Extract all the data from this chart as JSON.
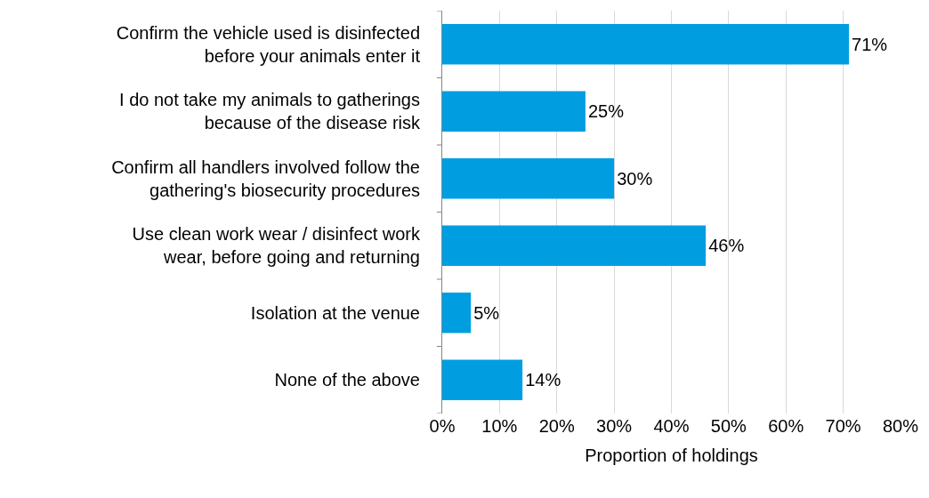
{
  "chart_data": {
    "type": "bar",
    "orientation": "horizontal",
    "xlabel": "Proportion of holdings",
    "categories": [
      "Confirm the vehicle used is disinfected before your animals enter it",
      "I do not take my animals to gatherings because of the disease risk",
      "Confirm all handlers involved follow the gathering's biosecurity procedures",
      "Use clean work wear / disinfect work wear, before going and returning",
      "Isolation at the venue",
      "None of the above"
    ],
    "values": [
      71,
      25,
      30,
      46,
      5,
      14
    ],
    "value_labels": [
      "71%",
      "25%",
      "30%",
      "46%",
      "5%",
      "14%"
    ],
    "color": "#009ee0",
    "xlim": [
      0,
      80
    ],
    "xticks": [
      {
        "value": 0,
        "label": "0%"
      },
      {
        "value": 10,
        "label": "10%"
      },
      {
        "value": 20,
        "label": "20%"
      },
      {
        "value": 30,
        "label": "30%"
      },
      {
        "value": 40,
        "label": "40%"
      },
      {
        "value": 50,
        "label": "50%"
      },
      {
        "value": 60,
        "label": "60%"
      },
      {
        "value": 70,
        "label": "70%"
      },
      {
        "value": 80,
        "label": "80%"
      }
    ],
    "grid": "x"
  }
}
